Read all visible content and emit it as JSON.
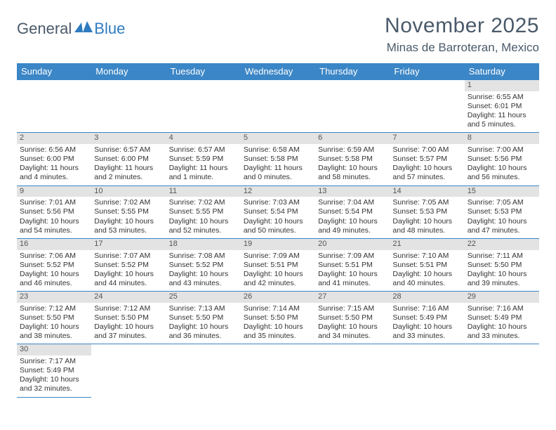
{
  "logo": {
    "dark": "General",
    "blue": "Blue"
  },
  "title": "November 2025",
  "location": "Minas de Barroteran, Mexico",
  "colors": {
    "header_bg": "#3b86c6",
    "header_text": "#ffffff",
    "daynum_bg": "#e3e3e3",
    "border": "#3b86c6",
    "logo_dark": "#4a5a6a",
    "logo_blue": "#2f7cc0",
    "body_text": "#333333"
  },
  "day_labels": [
    "Sunday",
    "Monday",
    "Tuesday",
    "Wednesday",
    "Thursday",
    "Friday",
    "Saturday"
  ],
  "weeks": [
    [
      null,
      null,
      null,
      null,
      null,
      null,
      {
        "n": "1",
        "sr": "Sunrise: 6:55 AM",
        "ss": "Sunset: 6:01 PM",
        "dl": "Daylight: 11 hours and 5 minutes."
      }
    ],
    [
      {
        "n": "2",
        "sr": "Sunrise: 6:56 AM",
        "ss": "Sunset: 6:00 PM",
        "dl": "Daylight: 11 hours and 4 minutes."
      },
      {
        "n": "3",
        "sr": "Sunrise: 6:57 AM",
        "ss": "Sunset: 6:00 PM",
        "dl": "Daylight: 11 hours and 2 minutes."
      },
      {
        "n": "4",
        "sr": "Sunrise: 6:57 AM",
        "ss": "Sunset: 5:59 PM",
        "dl": "Daylight: 11 hours and 1 minute."
      },
      {
        "n": "5",
        "sr": "Sunrise: 6:58 AM",
        "ss": "Sunset: 5:58 PM",
        "dl": "Daylight: 11 hours and 0 minutes."
      },
      {
        "n": "6",
        "sr": "Sunrise: 6:59 AM",
        "ss": "Sunset: 5:58 PM",
        "dl": "Daylight: 10 hours and 58 minutes."
      },
      {
        "n": "7",
        "sr": "Sunrise: 7:00 AM",
        "ss": "Sunset: 5:57 PM",
        "dl": "Daylight: 10 hours and 57 minutes."
      },
      {
        "n": "8",
        "sr": "Sunrise: 7:00 AM",
        "ss": "Sunset: 5:56 PM",
        "dl": "Daylight: 10 hours and 56 minutes."
      }
    ],
    [
      {
        "n": "9",
        "sr": "Sunrise: 7:01 AM",
        "ss": "Sunset: 5:56 PM",
        "dl": "Daylight: 10 hours and 54 minutes."
      },
      {
        "n": "10",
        "sr": "Sunrise: 7:02 AM",
        "ss": "Sunset: 5:55 PM",
        "dl": "Daylight: 10 hours and 53 minutes."
      },
      {
        "n": "11",
        "sr": "Sunrise: 7:02 AM",
        "ss": "Sunset: 5:55 PM",
        "dl": "Daylight: 10 hours and 52 minutes."
      },
      {
        "n": "12",
        "sr": "Sunrise: 7:03 AM",
        "ss": "Sunset: 5:54 PM",
        "dl": "Daylight: 10 hours and 50 minutes."
      },
      {
        "n": "13",
        "sr": "Sunrise: 7:04 AM",
        "ss": "Sunset: 5:54 PM",
        "dl": "Daylight: 10 hours and 49 minutes."
      },
      {
        "n": "14",
        "sr": "Sunrise: 7:05 AM",
        "ss": "Sunset: 5:53 PM",
        "dl": "Daylight: 10 hours and 48 minutes."
      },
      {
        "n": "15",
        "sr": "Sunrise: 7:05 AM",
        "ss": "Sunset: 5:53 PM",
        "dl": "Daylight: 10 hours and 47 minutes."
      }
    ],
    [
      {
        "n": "16",
        "sr": "Sunrise: 7:06 AM",
        "ss": "Sunset: 5:52 PM",
        "dl": "Daylight: 10 hours and 46 minutes."
      },
      {
        "n": "17",
        "sr": "Sunrise: 7:07 AM",
        "ss": "Sunset: 5:52 PM",
        "dl": "Daylight: 10 hours and 44 minutes."
      },
      {
        "n": "18",
        "sr": "Sunrise: 7:08 AM",
        "ss": "Sunset: 5:52 PM",
        "dl": "Daylight: 10 hours and 43 minutes."
      },
      {
        "n": "19",
        "sr": "Sunrise: 7:09 AM",
        "ss": "Sunset: 5:51 PM",
        "dl": "Daylight: 10 hours and 42 minutes."
      },
      {
        "n": "20",
        "sr": "Sunrise: 7:09 AM",
        "ss": "Sunset: 5:51 PM",
        "dl": "Daylight: 10 hours and 41 minutes."
      },
      {
        "n": "21",
        "sr": "Sunrise: 7:10 AM",
        "ss": "Sunset: 5:51 PM",
        "dl": "Daylight: 10 hours and 40 minutes."
      },
      {
        "n": "22",
        "sr": "Sunrise: 7:11 AM",
        "ss": "Sunset: 5:50 PM",
        "dl": "Daylight: 10 hours and 39 minutes."
      }
    ],
    [
      {
        "n": "23",
        "sr": "Sunrise: 7:12 AM",
        "ss": "Sunset: 5:50 PM",
        "dl": "Daylight: 10 hours and 38 minutes."
      },
      {
        "n": "24",
        "sr": "Sunrise: 7:12 AM",
        "ss": "Sunset: 5:50 PM",
        "dl": "Daylight: 10 hours and 37 minutes."
      },
      {
        "n": "25",
        "sr": "Sunrise: 7:13 AM",
        "ss": "Sunset: 5:50 PM",
        "dl": "Daylight: 10 hours and 36 minutes."
      },
      {
        "n": "26",
        "sr": "Sunrise: 7:14 AM",
        "ss": "Sunset: 5:50 PM",
        "dl": "Daylight: 10 hours and 35 minutes."
      },
      {
        "n": "27",
        "sr": "Sunrise: 7:15 AM",
        "ss": "Sunset: 5:50 PM",
        "dl": "Daylight: 10 hours and 34 minutes."
      },
      {
        "n": "28",
        "sr": "Sunrise: 7:16 AM",
        "ss": "Sunset: 5:49 PM",
        "dl": "Daylight: 10 hours and 33 minutes."
      },
      {
        "n": "29",
        "sr": "Sunrise: 7:16 AM",
        "ss": "Sunset: 5:49 PM",
        "dl": "Daylight: 10 hours and 33 minutes."
      }
    ],
    [
      {
        "n": "30",
        "sr": "Sunrise: 7:17 AM",
        "ss": "Sunset: 5:49 PM",
        "dl": "Daylight: 10 hours and 32 minutes."
      },
      null,
      null,
      null,
      null,
      null,
      null
    ]
  ]
}
